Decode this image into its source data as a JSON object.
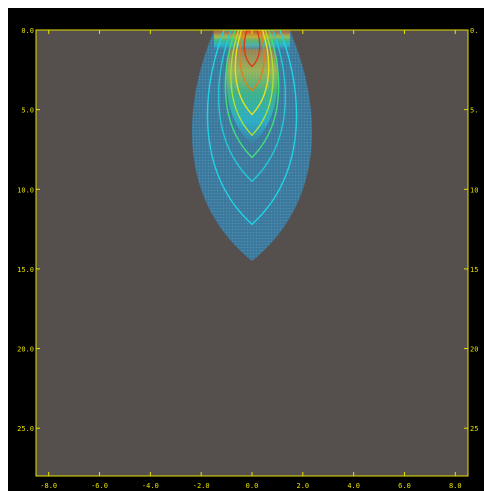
{
  "chart_data": {
    "type": "heatmap",
    "title": "",
    "xlabel": "",
    "ylabel": "",
    "xlim": [
      -8.5,
      8.5
    ],
    "ylim": [
      0,
      28
    ],
    "y_inverted": true,
    "x_ticks": [
      -8,
      -6,
      -4,
      -2,
      0,
      2,
      4,
      6,
      8
    ],
    "x_tick_labels": [
      "-8.0",
      "-6.0",
      "-4.0",
      "-2.0",
      "0.0",
      "2.0",
      "4.0",
      "6.0",
      "8.0"
    ],
    "y_ticks": [
      0,
      5,
      10,
      15,
      20,
      25
    ],
    "y_tick_labels_left": [
      "0.0",
      "5.0",
      "10.0",
      "15.0",
      "20.0",
      "25.0"
    ],
    "y_tick_labels_right": [
      "0.",
      "5.",
      "10",
      "15",
      "20",
      "25"
    ],
    "grid": false,
    "legend": "none",
    "colors": {
      "outer_background": "#000000",
      "plot_background": "#554f4d",
      "axis_and_labels": "#e8e000",
      "field_outer": "#3d7fa3",
      "contour_cyan": "#1fd4e6",
      "contour_green": "#3fe07a",
      "contour_yellow": "#e6e020",
      "contour_orange": "#e07f20",
      "contour_red": "#d83b1c"
    },
    "plume": {
      "source_x_range": [
        -1.5,
        1.5
      ],
      "source_depth": 0,
      "outer_extent_depth": 14.5,
      "outer_half_width": 2.7,
      "contours": [
        {
          "level": "cyan-outer",
          "tip_depth": 12.2,
          "half_width": 2.0,
          "color": "#1fd4e6"
        },
        {
          "level": "cyan-mid",
          "tip_depth": 9.5,
          "half_width": 1.5,
          "color": "#22c9d6"
        },
        {
          "level": "green",
          "tip_depth": 8.0,
          "half_width": 1.2,
          "color": "#3fe07a"
        },
        {
          "level": "yellow-green",
          "tip_depth": 6.6,
          "half_width": 0.95,
          "color": "#a8e03a"
        },
        {
          "level": "yellow",
          "tip_depth": 5.3,
          "half_width": 0.75,
          "color": "#e6e020"
        },
        {
          "level": "orange",
          "tip_depth": 3.8,
          "half_width": 0.55,
          "color": "#e07f20"
        },
        {
          "level": "red",
          "tip_depth": 2.3,
          "half_width": 0.35,
          "color": "#d83b1c"
        }
      ]
    }
  }
}
